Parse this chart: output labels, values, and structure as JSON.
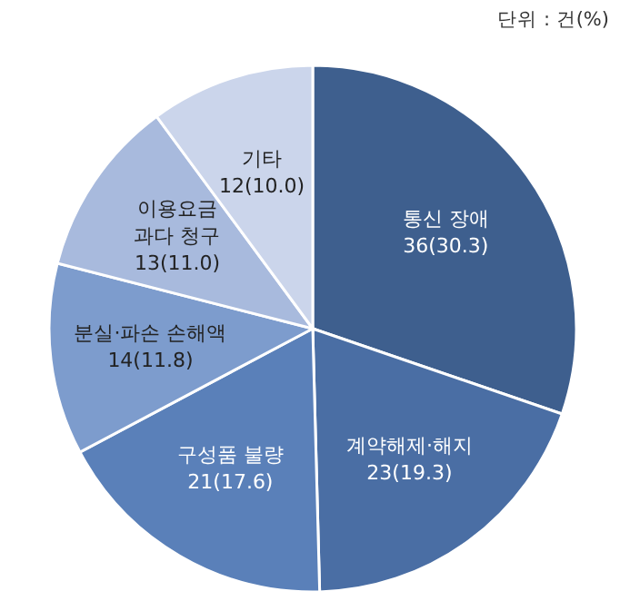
{
  "chart_data": {
    "type": "pie",
    "categories": [
      "통신 장애",
      "계약해제·해지",
      "구성품 불량",
      "분실·파손 손해액",
      "이용요금\n과다 청구",
      "기타"
    ],
    "values": [
      36,
      23,
      21,
      14,
      13,
      12
    ],
    "value_labels": [
      "36(30.3)",
      "23(19.3)",
      "21(17.6)",
      "14(11.8)",
      "13(11.0)",
      "12(10.0)"
    ],
    "colors": [
      "#3e5f8e",
      "#4a6ea4",
      "#5a80b9",
      "#7d9ccd",
      "#a8badd",
      "#cbd5eb"
    ],
    "annotations": [
      "단위 : 건(%)"
    ]
  }
}
